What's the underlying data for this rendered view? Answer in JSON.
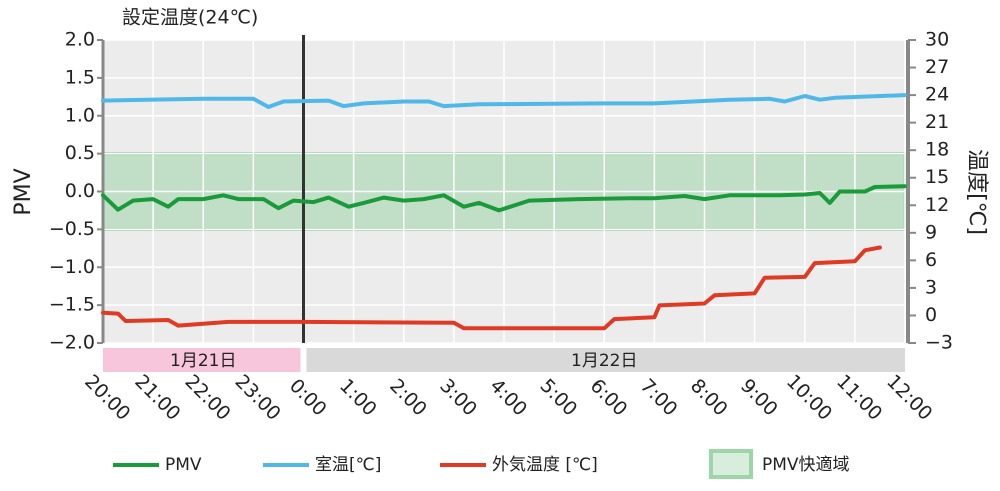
{
  "chart_data": {
    "type": "line",
    "annotation": {
      "text": "設定温度(24℃)",
      "x": 4
    },
    "ylabel": "PMV",
    "y2label": "温度[℃]",
    "xlim": [
      0,
      16
    ],
    "xticks": [
      {
        "value": 0,
        "label": "20:00"
      },
      {
        "value": 1,
        "label": "21:00"
      },
      {
        "value": 2,
        "label": "22:00"
      },
      {
        "value": 3,
        "label": "23:00"
      },
      {
        "value": 4,
        "label": "0:00"
      },
      {
        "value": 5,
        "label": "1:00"
      },
      {
        "value": 6,
        "label": "2:00"
      },
      {
        "value": 7,
        "label": "3:00"
      },
      {
        "value": 8,
        "label": "4:00"
      },
      {
        "value": 9,
        "label": "5:00"
      },
      {
        "value": 10,
        "label": "6:00"
      },
      {
        "value": 11,
        "label": "7:00"
      },
      {
        "value": 12,
        "label": "8:00"
      },
      {
        "value": 13,
        "label": "9:00"
      },
      {
        "value": 14,
        "label": "10:00"
      },
      {
        "value": 15,
        "label": "11:00"
      },
      {
        "value": 16,
        "label": "12:00"
      }
    ],
    "ylim": [
      -2,
      2
    ],
    "yticks": [
      {
        "value": 2,
        "label": "2.0"
      },
      1.5,
      {
        "value": 1,
        "label": "1.0"
      },
      0.5,
      {
        "value": 0,
        "label": "0.0"
      },
      {
        "value": -0.5,
        "label": "−0.5"
      },
      {
        "value": -1,
        "label": "−1.0"
      },
      {
        "value": -1.5,
        "label": "−1.5"
      },
      {
        "value": -2,
        "label": "−2.0"
      }
    ],
    "y2lim": [
      -3,
      30
    ],
    "y2ticks": [
      30,
      27,
      24,
      21,
      18,
      15,
      12,
      9,
      6,
      3,
      0,
      {
        "value": -3,
        "label": "−3"
      }
    ],
    "grid": true,
    "date_ranges": [
      {
        "label": "1月21日",
        "range": [
          0,
          4
        ],
        "color": "#f7c6dc"
      },
      {
        "label": "1月22日",
        "range": [
          4,
          16
        ],
        "color": "#d9d9d9"
      }
    ],
    "band": {
      "name": "PMV快適域",
      "range": [
        -0.5,
        0.5
      ],
      "color": "#9fd4a8"
    },
    "series": [
      {
        "name": "PMV",
        "color": "#1a9a3a",
        "axis": "y",
        "x": [
          0,
          0.3,
          0.6,
          1,
          1.3,
          1.5,
          2,
          2.4,
          2.7,
          3.2,
          3.5,
          3.8,
          4.2,
          4.5,
          4.9,
          5.2,
          5.6,
          6,
          6.4,
          6.8,
          7.2,
          7.5,
          7.9,
          8.5,
          9.5,
          10.5,
          11,
          11.6,
          12,
          12.5,
          13,
          13.5,
          14,
          14.3,
          14.5,
          14.7,
          15.2,
          15.4,
          16
        ],
        "values": [
          -0.05,
          -0.24,
          -0.12,
          -0.1,
          -0.2,
          -0.1,
          -0.1,
          -0.05,
          -0.1,
          -0.1,
          -0.22,
          -0.12,
          -0.14,
          -0.08,
          -0.2,
          -0.15,
          -0.08,
          -0.12,
          -0.1,
          -0.05,
          -0.2,
          -0.15,
          -0.25,
          -0.12,
          -0.1,
          -0.09,
          -0.09,
          -0.06,
          -0.1,
          -0.05,
          -0.05,
          -0.05,
          -0.04,
          -0.02,
          -0.15,
          0,
          0,
          0.06,
          0.07
        ]
      },
      {
        "name": "室温[℃]",
        "color": "#4fb8e8",
        "axis": "y2",
        "x": [
          0,
          2,
          3,
          3.3,
          3.6,
          4.5,
          4.8,
          5.2,
          6,
          6.5,
          6.8,
          7.5,
          10,
          11,
          12.5,
          13.3,
          13.6,
          14,
          14.3,
          14.6,
          16
        ],
        "values": [
          23.4,
          23.6,
          23.6,
          22.7,
          23.3,
          23.4,
          22.8,
          23.1,
          23.3,
          23.3,
          22.8,
          23,
          23.1,
          23.1,
          23.5,
          23.6,
          23.3,
          23.9,
          23.5,
          23.7,
          24
        ]
      },
      {
        "name": "外気温度 [℃]",
        "color": "#e03a24",
        "axis": "y2",
        "x": [
          0,
          0.3,
          0.45,
          1.3,
          1.5,
          2.5,
          4,
          7,
          7.2,
          10,
          10.2,
          11,
          11.1,
          12,
          12.2,
          13,
          13.2,
          14,
          14.2,
          15,
          15.2,
          15.5
        ],
        "values": [
          0.3,
          0.2,
          -0.6,
          -0.5,
          -1.1,
          -0.7,
          -0.7,
          -0.8,
          -1.4,
          -1.4,
          -0.4,
          -0.2,
          1.1,
          1.3,
          2.2,
          2.4,
          4.1,
          4.2,
          5.7,
          5.9,
          7.1,
          7.4
        ]
      }
    ]
  }
}
